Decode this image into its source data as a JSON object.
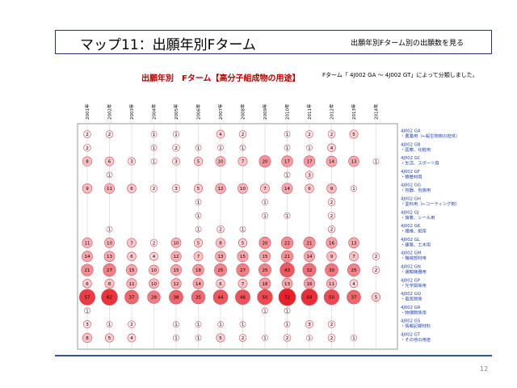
{
  "header": {
    "title": "マップ11：出願年別Fターム",
    "subtitle": "出願年別Fターム別の出願数を見る"
  },
  "chart_heading": "出願年別　Fターム【高分子組成物の用途】",
  "chart_note": "Fターム「 4J002 GA ～ 4J002 GT」によって分類しました。",
  "page_number": "12",
  "chart_data": {
    "type": "bubble",
    "years": [
      "2001年",
      "2002年",
      "2003年",
      "2004年",
      "2005年",
      "2006年",
      "2007年",
      "2008年",
      "2009年",
      "2010年",
      "2011年",
      "2012年",
      "2013年",
      "2014年"
    ],
    "rows": [
      {
        "code": "4J002 GA",
        "label": "・農業用（←殺生物剤の担体）",
        "values": [
          2,
          2,
          null,
          1,
          1,
          null,
          4,
          2,
          null,
          1,
          2,
          2,
          5,
          null
        ]
      },
      {
        "code": "4J002 GB",
        "label": "・医療、化粧用",
        "values": [
          2,
          null,
          null,
          1,
          2,
          1,
          1,
          1,
          null,
          1,
          1,
          4,
          null,
          null
        ]
      },
      {
        "code": "4J002 GC",
        "label": "・生活、スポーツ用",
        "values": [
          8,
          6,
          3,
          1,
          3,
          5,
          10,
          7,
          20,
          17,
          17,
          14,
          13,
          1
        ]
      },
      {
        "code": "4J002 GF",
        "label": "・積層材用",
        "values": [
          null,
          1,
          null,
          null,
          null,
          null,
          null,
          null,
          null,
          1,
          3,
          null,
          null,
          null
        ]
      },
      {
        "code": "4J002 GG",
        "label": "・容器、包装用",
        "values": [
          9,
          11,
          6,
          2,
          3,
          5,
          12,
          10,
          7,
          14,
          6,
          9,
          1,
          null
        ]
      },
      {
        "code": "4J002 GH",
        "label": "・塗料用（←コーティング剤）",
        "values": [
          null,
          null,
          null,
          null,
          null,
          1,
          null,
          null,
          1,
          null,
          null,
          2,
          null,
          null
        ]
      },
      {
        "code": "4J002 GJ",
        "label": "・接着、シール用",
        "values": [
          null,
          null,
          null,
          null,
          null,
          1,
          null,
          null,
          1,
          1,
          null,
          2,
          null,
          null
        ]
      },
      {
        "code": "4J002 GK",
        "label": "・繊維、紙用",
        "values": [
          null,
          1,
          null,
          null,
          null,
          1,
          2,
          1,
          null,
          null,
          null,
          2,
          null,
          null
        ]
      },
      {
        "code": "4J002 GL",
        "label": "・建築、土木用",
        "values": [
          11,
          10,
          7,
          2,
          10,
          5,
          8,
          5,
          20,
          22,
          21,
          16,
          13,
          null
        ]
      },
      {
        "code": "4J002 GM",
        "label": "・機械部材用",
        "values": [
          14,
          13,
          6,
          4,
          12,
          7,
          13,
          15,
          15,
          21,
          14,
          9,
          7,
          2
        ]
      },
      {
        "code": "4J002 GN",
        "label": "・運輸機器用",
        "values": [
          21,
          27,
          15,
          10,
          15,
          18,
          25,
          27,
          25,
          43,
          32,
          30,
          25,
          2
        ]
      },
      {
        "code": "4J002 GP",
        "label": "・光学関係用",
        "values": [
          6,
          8,
          11,
          10,
          12,
          14,
          6,
          7,
          18,
          13,
          16,
          11,
          4,
          null
        ]
      },
      {
        "code": "4J002 GQ",
        "label": "・電気関係",
        "values": [
          57,
          62,
          37,
          28,
          38,
          35,
          44,
          46,
          50,
          72,
          64,
          50,
          37,
          5
        ]
      },
      {
        "code": "4J002 GR",
        "label": "・物理関係用",
        "values": [
          1,
          null,
          null,
          null,
          null,
          null,
          null,
          null,
          1,
          1,
          null,
          null,
          null,
          null
        ]
      },
      {
        "code": "4J002 GS",
        "label": "・情報記録材料",
        "values": [
          3,
          1,
          2,
          null,
          1,
          1,
          1,
          1,
          null,
          1,
          3,
          2,
          null,
          null
        ]
      },
      {
        "code": "4J002 GT",
        "label": "・その他の用途",
        "values": [
          8,
          5,
          4,
          null,
          1,
          1,
          5,
          2,
          1,
          2,
          1,
          2,
          1,
          null
        ]
      }
    ],
    "colors": {
      "bubble_large": "#e8202a",
      "bubble_small": "#ffffff",
      "stroke": "#d05060",
      "label_blue": "#1f3fbf"
    }
  }
}
